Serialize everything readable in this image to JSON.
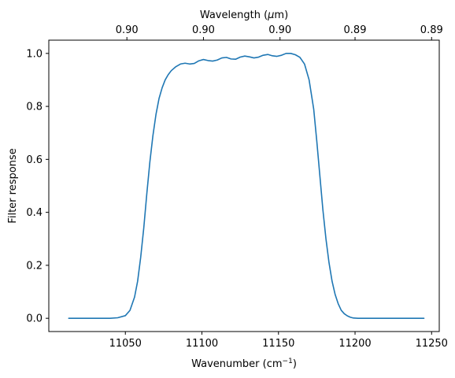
{
  "chart_data": {
    "type": "line",
    "xlabel_text": "Wavenumber (cm",
    "xlabel_sup": "−1",
    "xlabel_close": ")",
    "ylabel": "Filter response",
    "top_xlabel_pre": "Wavelength (",
    "top_xlabel_mu": "μ",
    "top_xlabel_post": "m)",
    "xlim": [
      11000,
      11255
    ],
    "ylim": [
      -0.05,
      1.05
    ],
    "x_ticks": [
      {
        "value": 11050,
        "label": "11050"
      },
      {
        "value": 11100,
        "label": "11100"
      },
      {
        "value": 11150,
        "label": "11150"
      },
      {
        "value": 11200,
        "label": "11200"
      },
      {
        "value": 11250,
        "label": "11250"
      }
    ],
    "y_ticks": [
      {
        "value": 0.0,
        "label": "0.0"
      },
      {
        "value": 0.2,
        "label": "0.2"
      },
      {
        "value": 0.4,
        "label": "0.4"
      },
      {
        "value": 0.6,
        "label": "0.6"
      },
      {
        "value": 0.8,
        "label": "0.8"
      },
      {
        "value": 1.0,
        "label": "1.0"
      }
    ],
    "top_ticks": [
      {
        "value": 11051,
        "label": "0.90"
      },
      {
        "value": 11101,
        "label": "0.90"
      },
      {
        "value": 11151,
        "label": "0.90"
      },
      {
        "value": 11200,
        "label": "0.89"
      },
      {
        "value": 11250,
        "label": "0.89"
      }
    ],
    "line_color": "#1f77b4",
    "series": [
      {
        "x": [
          11013,
          11020,
          11030,
          11040,
          11045,
          11050,
          11053,
          11056,
          11058,
          11060,
          11062,
          11064,
          11066,
          11068,
          11070,
          11072,
          11074,
          11076,
          11078,
          11080,
          11083,
          11086,
          11089,
          11092,
          11095,
          11098,
          11101,
          11104,
          11107,
          11110,
          11113,
          11116,
          11119,
          11122,
          11125,
          11128,
          11131,
          11134,
          11137,
          11140,
          11143,
          11146,
          11149,
          11152,
          11155,
          11158,
          11161,
          11164,
          11167,
          11170,
          11173,
          11175,
          11177,
          11179,
          11181,
          11183,
          11185,
          11187,
          11189,
          11191,
          11193,
          11195,
          11197,
          11199,
          11202,
          11206,
          11210,
          11220,
          11230,
          11245
        ],
        "y": [
          0.0,
          0.0,
          0.0,
          0.0,
          0.002,
          0.01,
          0.03,
          0.08,
          0.14,
          0.23,
          0.34,
          0.47,
          0.59,
          0.69,
          0.77,
          0.83,
          0.87,
          0.9,
          0.92,
          0.935,
          0.95,
          0.96,
          0.963,
          0.96,
          0.962,
          0.972,
          0.977,
          0.973,
          0.971,
          0.975,
          0.983,
          0.985,
          0.979,
          0.978,
          0.986,
          0.99,
          0.987,
          0.983,
          0.986,
          0.993,
          0.996,
          0.991,
          0.989,
          0.993,
          1.0,
          1.0,
          0.995,
          0.985,
          0.96,
          0.9,
          0.79,
          0.67,
          0.54,
          0.41,
          0.3,
          0.21,
          0.14,
          0.09,
          0.055,
          0.03,
          0.017,
          0.009,
          0.004,
          0.001,
          0.0,
          0.0,
          0.0,
          0.0,
          0.0,
          0.0
        ]
      }
    ]
  }
}
